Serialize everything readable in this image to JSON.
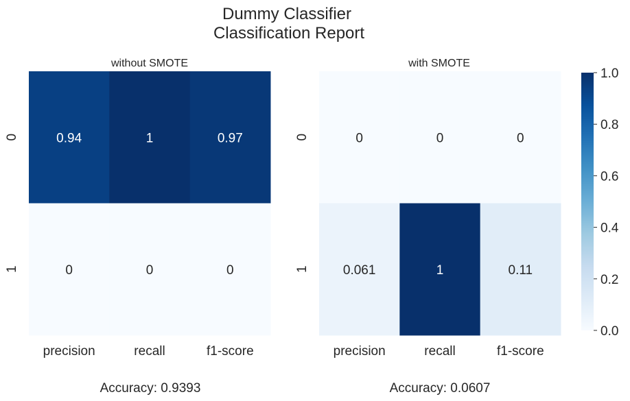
{
  "figure": {
    "title_line1": "Dummy Classifier",
    "title_line2": "Classification Report"
  },
  "chart_data": [
    {
      "type": "heatmap",
      "title": "without SMOTE",
      "x": [
        "precision",
        "recall",
        "f1-score"
      ],
      "y": [
        "0",
        "1"
      ],
      "values": [
        [
          0.94,
          1.0,
          0.97
        ],
        [
          0.0,
          0.0,
          0.0
        ]
      ],
      "value_labels": [
        [
          "0.94",
          "1",
          "0.97"
        ],
        [
          "0",
          "0",
          "0"
        ]
      ],
      "footer": "Accuracy: 0.9393",
      "colormap": "Blues",
      "vmin": 0,
      "vmax": 1
    },
    {
      "type": "heatmap",
      "title": "with SMOTE",
      "x": [
        "precision",
        "recall",
        "f1-score"
      ],
      "y": [
        "0",
        "1"
      ],
      "values": [
        [
          0.0,
          0.0,
          0.0
        ],
        [
          0.061,
          1.0,
          0.11
        ]
      ],
      "value_labels": [
        [
          "0",
          "0",
          "0"
        ],
        [
          "0.061",
          "1",
          "0.11"
        ]
      ],
      "footer": "Accuracy: 0.0607",
      "colormap": "Blues",
      "vmin": 0,
      "vmax": 1
    }
  ],
  "colorbar": {
    "ticks": [
      "0.0",
      "0.2",
      "0.4",
      "0.6",
      "0.8",
      "1.0"
    ],
    "range": [
      0,
      1
    ],
    "colormap": "Blues"
  }
}
